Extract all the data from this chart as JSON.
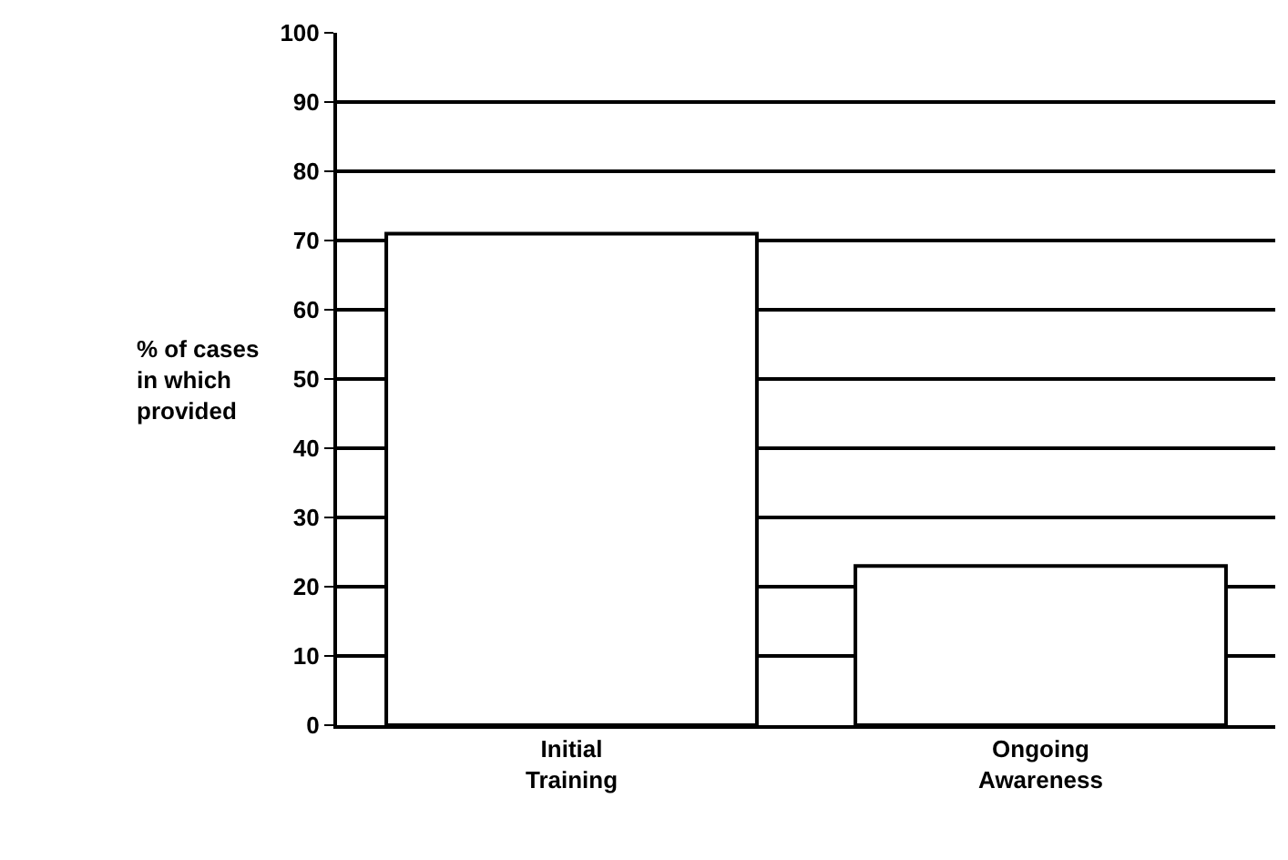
{
  "chart_data": {
    "type": "bar",
    "ylabel": "% of cases in which provided",
    "categories": [
      "Initial Training",
      "Ongoing Awareness"
    ],
    "values": [
      71,
      23
    ],
    "color": "#ffffff",
    "ylim": [
      0,
      100
    ],
    "yticks": [
      0,
      10,
      20,
      30,
      40,
      50,
      60,
      70,
      80,
      90,
      100
    ],
    "grid": "y"
  }
}
